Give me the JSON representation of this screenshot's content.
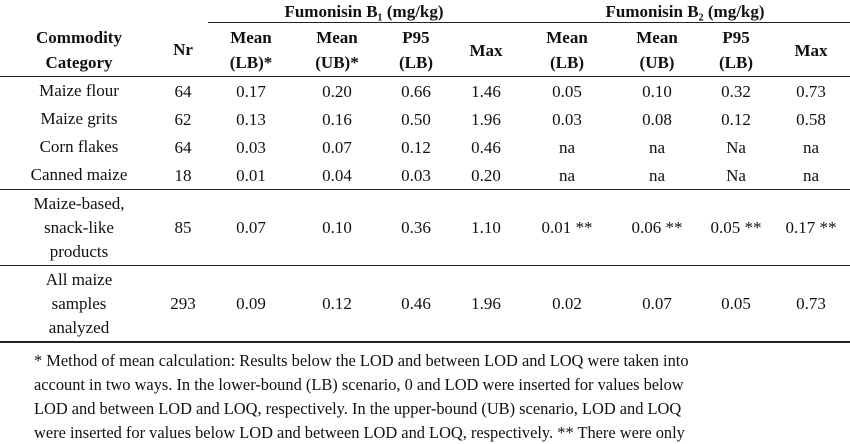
{
  "group_headers": {
    "b1": "Fumonisin B₁ (mg/kg)",
    "b2": "Fumonisin B₂ (mg/kg)"
  },
  "columns": {
    "category": [
      "Commodity",
      "Category"
    ],
    "nr": "Nr",
    "b1_mean_lb": [
      "Mean",
      "(LB)*"
    ],
    "b1_mean_ub": [
      "Mean",
      "(UB)*"
    ],
    "b1_p95": [
      "P95",
      "(LB)"
    ],
    "b1_max": "Max",
    "b2_mean_lb": [
      "Mean",
      "(LB)"
    ],
    "b2_mean_ub": [
      "Mean",
      "(UB)"
    ],
    "b2_p95": [
      "P95",
      "(LB)"
    ],
    "b2_max": "Max"
  },
  "rows": [
    {
      "category": [
        "Maize flour"
      ],
      "nr": "64",
      "b1_mean_lb": "0.17",
      "b1_mean_ub": "0.20",
      "b1_p95": "0.66",
      "b1_max": "1.46",
      "b2_mean_lb": "0.05",
      "b2_mean_ub": "0.10",
      "b2_p95": "0.32",
      "b2_max": "0.73"
    },
    {
      "category": [
        "Maize grits"
      ],
      "nr": "62",
      "b1_mean_lb": "0.13",
      "b1_mean_ub": "0.16",
      "b1_p95": "0.50",
      "b1_max": "1.96",
      "b2_mean_lb": "0.03",
      "b2_mean_ub": "0.08",
      "b2_p95": "0.12",
      "b2_max": "0.58"
    },
    {
      "category": [
        "Corn flakes"
      ],
      "nr": "64",
      "b1_mean_lb": "0.03",
      "b1_mean_ub": "0.07",
      "b1_p95": "0.12",
      "b1_max": "0.46",
      "b2_mean_lb": "na",
      "b2_mean_ub": "na",
      "b2_p95": "Na",
      "b2_max": "na"
    },
    {
      "category": [
        "Canned maize"
      ],
      "nr": "18",
      "b1_mean_lb": "0.01",
      "b1_mean_ub": "0.04",
      "b1_p95": "0.03",
      "b1_max": "0.20",
      "b2_mean_lb": "na",
      "b2_mean_ub": "na",
      "b2_p95": "Na",
      "b2_max": "na"
    },
    {
      "category": [
        "Maize-based,",
        "snack-like",
        "products"
      ],
      "nr": "85",
      "b1_mean_lb": "0.07",
      "b1_mean_ub": "0.10",
      "b1_p95": "0.36",
      "b1_max": "1.10",
      "b2_mean_lb": "0.01 **",
      "b2_mean_ub": "0.06 **",
      "b2_p95": "0.05 **",
      "b2_max": "0.17 **"
    },
    {
      "category": [
        "All maize",
        "samples",
        "analyzed"
      ],
      "nr": "293",
      "b1_mean_lb": "0.09",
      "b1_mean_ub": "0.12",
      "b1_p95": "0.46",
      "b1_max": "1.96",
      "b2_mean_lb": "0.02",
      "b2_mean_ub": "0.07",
      "b2_p95": "0.05",
      "b2_max": "0.73"
    }
  ],
  "footnote_lines": [
    "* Method of mean calculation: Results below the LOD and between LOD and LOQ were taken into",
    "account in two ways. In the lower-bound (LB) scenario, 0 and LOD were inserted for values below",
    "LOD and between LOD and LOQ, respectively. In the upper-bound (UB) scenario, LOD and LOQ",
    "were inserted for values below LOD and between LOD and LOQ, respectively. ** There were only"
  ]
}
